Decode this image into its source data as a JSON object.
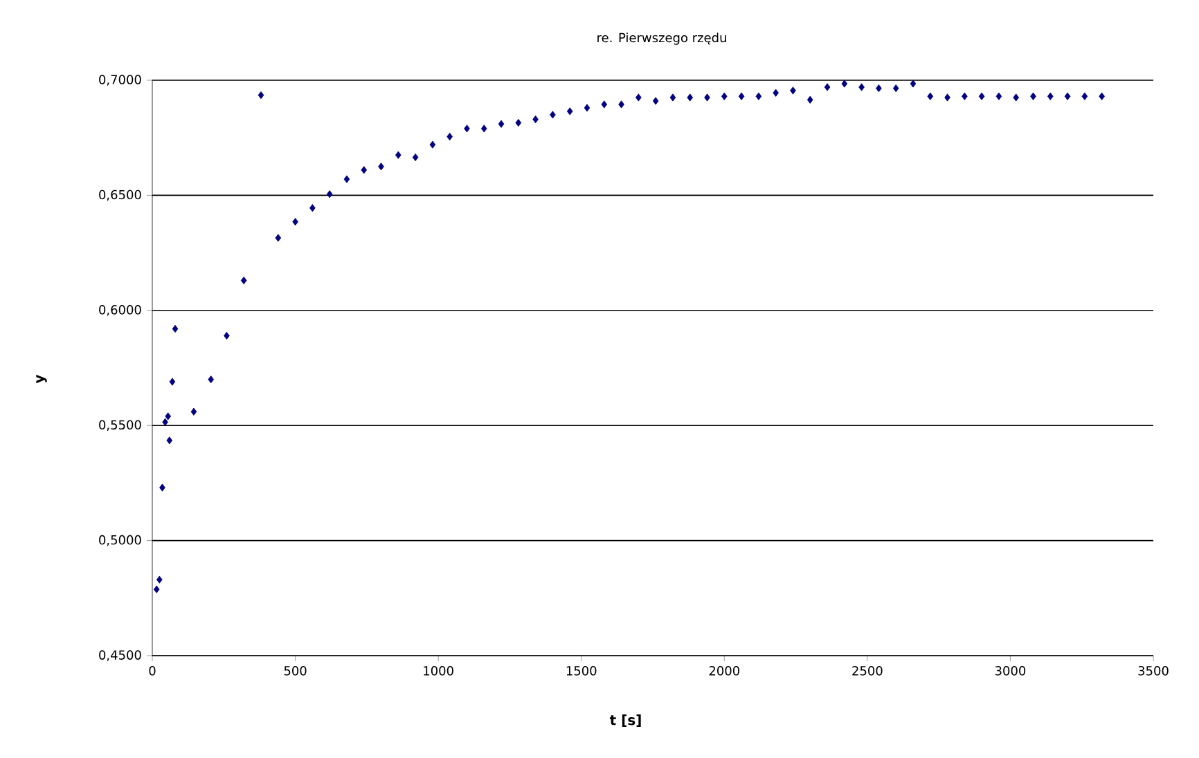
{
  "chart_data": {
    "type": "scatter",
    "title": "re. Pierwszego rzędu",
    "xlabel": "t [s]",
    "ylabel": "y",
    "xlim": [
      0,
      3500
    ],
    "xticks": [
      0,
      500,
      1000,
      1500,
      2000,
      2500,
      3000,
      3500
    ],
    "ylim": [
      0.45,
      0.7
    ],
    "yticks": [
      {
        "value": 0.45,
        "label": "0,4500"
      },
      {
        "value": 0.5,
        "label": "0,5000"
      },
      {
        "value": 0.55,
        "label": "0,5500"
      },
      {
        "value": 0.6,
        "label": "0,6000"
      },
      {
        "value": 0.65,
        "label": "0,6500"
      },
      {
        "value": 0.7,
        "label": "0,7000"
      }
    ],
    "grid": "y",
    "marker": "diamond",
    "series": [
      {
        "color": "#000080",
        "x": [
          15,
          25,
          35,
          45,
          55,
          60,
          70,
          80,
          145,
          205,
          260,
          320,
          380,
          440,
          500,
          560,
          620,
          680,
          740,
          800,
          860,
          920,
          980,
          1040,
          1100,
          1160,
          1220,
          1280,
          1340,
          1400,
          1460,
          1520,
          1580,
          1640,
          1700,
          1760,
          1820,
          1880,
          1940,
          2000,
          2060,
          2120,
          2180,
          2240,
          2300,
          2360,
          2420,
          2480,
          2540,
          2600,
          2660,
          2720,
          2780,
          2840,
          2900,
          2960,
          3020,
          3080,
          3140,
          3200,
          3260,
          3320
        ],
        "values": [
          0.4788,
          0.483,
          0.523,
          0.5515,
          0.554,
          0.5435,
          0.569,
          0.592,
          0.556,
          0.57,
          0.589,
          0.613,
          0.6935,
          0.6315,
          0.6385,
          0.6445,
          0.6505,
          0.657,
          0.661,
          0.6625,
          0.6675,
          0.6665,
          0.672,
          0.6755,
          0.679,
          0.679,
          0.681,
          0.6815,
          0.683,
          0.685,
          0.6865,
          0.688,
          0.6895,
          0.6895,
          0.6925,
          0.691,
          0.6925,
          0.6925,
          0.6925,
          0.693,
          0.693,
          0.693,
          0.6945,
          0.6955,
          0.6915,
          0.697,
          0.6985,
          0.697,
          0.6965,
          0.6965,
          0.6985,
          0.693,
          0.6925,
          0.693,
          0.693,
          0.693,
          0.6925,
          0.693,
          0.693,
          0.693,
          0.693,
          0.693
        ]
      }
    ]
  }
}
